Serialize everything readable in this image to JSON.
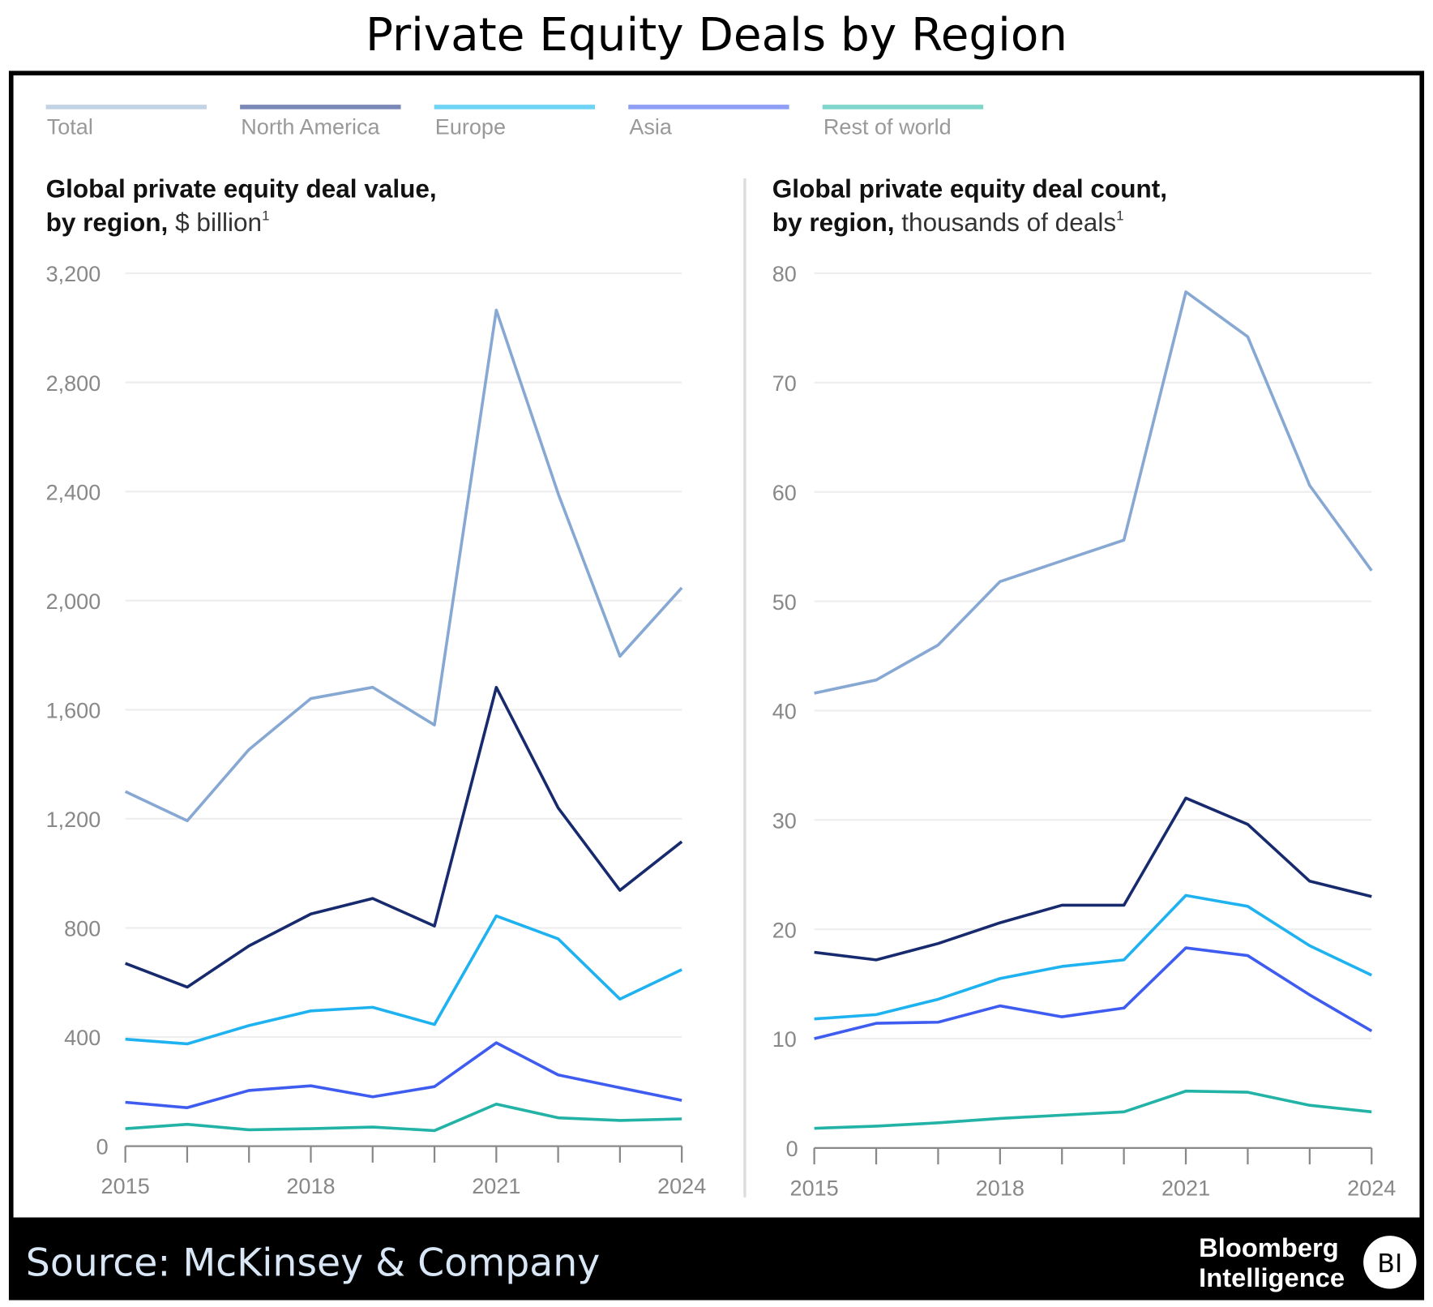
{
  "title": "Private Equity Deals by Region",
  "legend": [
    {
      "name": "Total",
      "color": "#c3d3e6"
    },
    {
      "name": "North America",
      "color": "#7a88b8"
    },
    {
      "name": "Europe",
      "color": "#6fd3f5"
    },
    {
      "name": "Asia",
      "color": "#8f9ff5"
    },
    {
      "name": "Rest of world",
      "color": "#7fd6cc"
    }
  ],
  "source": "Source: McKinsey & Company",
  "brand": {
    "line1": "Bloomberg",
    "line2": "Intelligence",
    "badge": "BI"
  },
  "chart_data": [
    {
      "type": "line",
      "title_bold": "Global private equity deal value,",
      "title_bold2": "by region,",
      "title_rest": " $ billion",
      "footnote": "1",
      "x": [
        2015,
        2016,
        2017,
        2018,
        2019,
        2020,
        2021,
        2022,
        2023,
        2024
      ],
      "xtick_labels": [
        "2015",
        "2018",
        "2021",
        "2024"
      ],
      "ylim": [
        0,
        3200
      ],
      "yticks": [
        0,
        400,
        800,
        1200,
        1600,
        2000,
        2400,
        2800,
        3200
      ],
      "ytick_labels": [
        "0",
        "400",
        "800",
        "1,200",
        "1,600",
        "2,000",
        "2,400",
        "2,800",
        "3,200"
      ],
      "grid": true,
      "series": [
        {
          "name": "Total",
          "color": "#86a8d3",
          "values": [
            1300,
            1193,
            1454,
            1641,
            1682,
            1544,
            3065,
            2392,
            1796,
            2047
          ]
        },
        {
          "name": "North America",
          "color": "#172a6e",
          "values": [
            670,
            583,
            734,
            851,
            908,
            807,
            1682,
            1240,
            938,
            1116
          ]
        },
        {
          "name": "Europe",
          "color": "#1fb2f0",
          "values": [
            392,
            375,
            442,
            496,
            509,
            446,
            844,
            760,
            539,
            647
          ]
        },
        {
          "name": "Asia",
          "color": "#3f5cf0",
          "values": [
            161,
            141,
            204,
            221,
            181,
            218,
            379,
            261,
            214,
            168
          ]
        },
        {
          "name": "Rest of world",
          "color": "#22b3a6",
          "values": [
            64,
            80,
            60,
            64,
            70,
            57,
            154,
            104,
            94,
            100
          ]
        }
      ]
    },
    {
      "type": "line",
      "title_bold": "Global private equity deal count,",
      "title_bold2": "by region,",
      "title_rest": " thousands of deals",
      "footnote": "1",
      "x": [
        2015,
        2016,
        2017,
        2018,
        2019,
        2020,
        2021,
        2022,
        2023,
        2024
      ],
      "xtick_labels": [
        "2015",
        "2018",
        "2021",
        "2024"
      ],
      "ylim": [
        0,
        80
      ],
      "yticks": [
        0,
        10,
        20,
        30,
        40,
        50,
        60,
        70,
        80
      ],
      "ytick_labels": [
        "0",
        "10",
        "20",
        "30",
        "40",
        "50",
        "60",
        "70",
        "80"
      ],
      "grid": true,
      "series": [
        {
          "name": "Total",
          "color": "#86a8d3",
          "values": [
            41.6,
            42.8,
            46.0,
            51.8,
            53.7,
            55.6,
            78.3,
            74.2,
            60.6,
            52.8
          ]
        },
        {
          "name": "North America",
          "color": "#172a6e",
          "values": [
            17.9,
            17.2,
            18.7,
            20.6,
            22.2,
            22.2,
            32.0,
            29.6,
            24.4,
            23.0
          ]
        },
        {
          "name": "Europe",
          "color": "#1fb2f0",
          "values": [
            11.8,
            12.2,
            13.6,
            15.5,
            16.6,
            17.2,
            23.1,
            22.1,
            18.5,
            15.8
          ]
        },
        {
          "name": "Asia",
          "color": "#3f5cf0",
          "values": [
            10.0,
            11.4,
            11.5,
            13.0,
            12.0,
            12.8,
            18.3,
            17.6,
            14.0,
            10.7
          ]
        },
        {
          "name": "Rest of world",
          "color": "#22b3a6",
          "values": [
            1.8,
            2.0,
            2.3,
            2.7,
            3.0,
            3.3,
            5.2,
            5.1,
            3.9,
            3.3
          ]
        }
      ]
    }
  ]
}
